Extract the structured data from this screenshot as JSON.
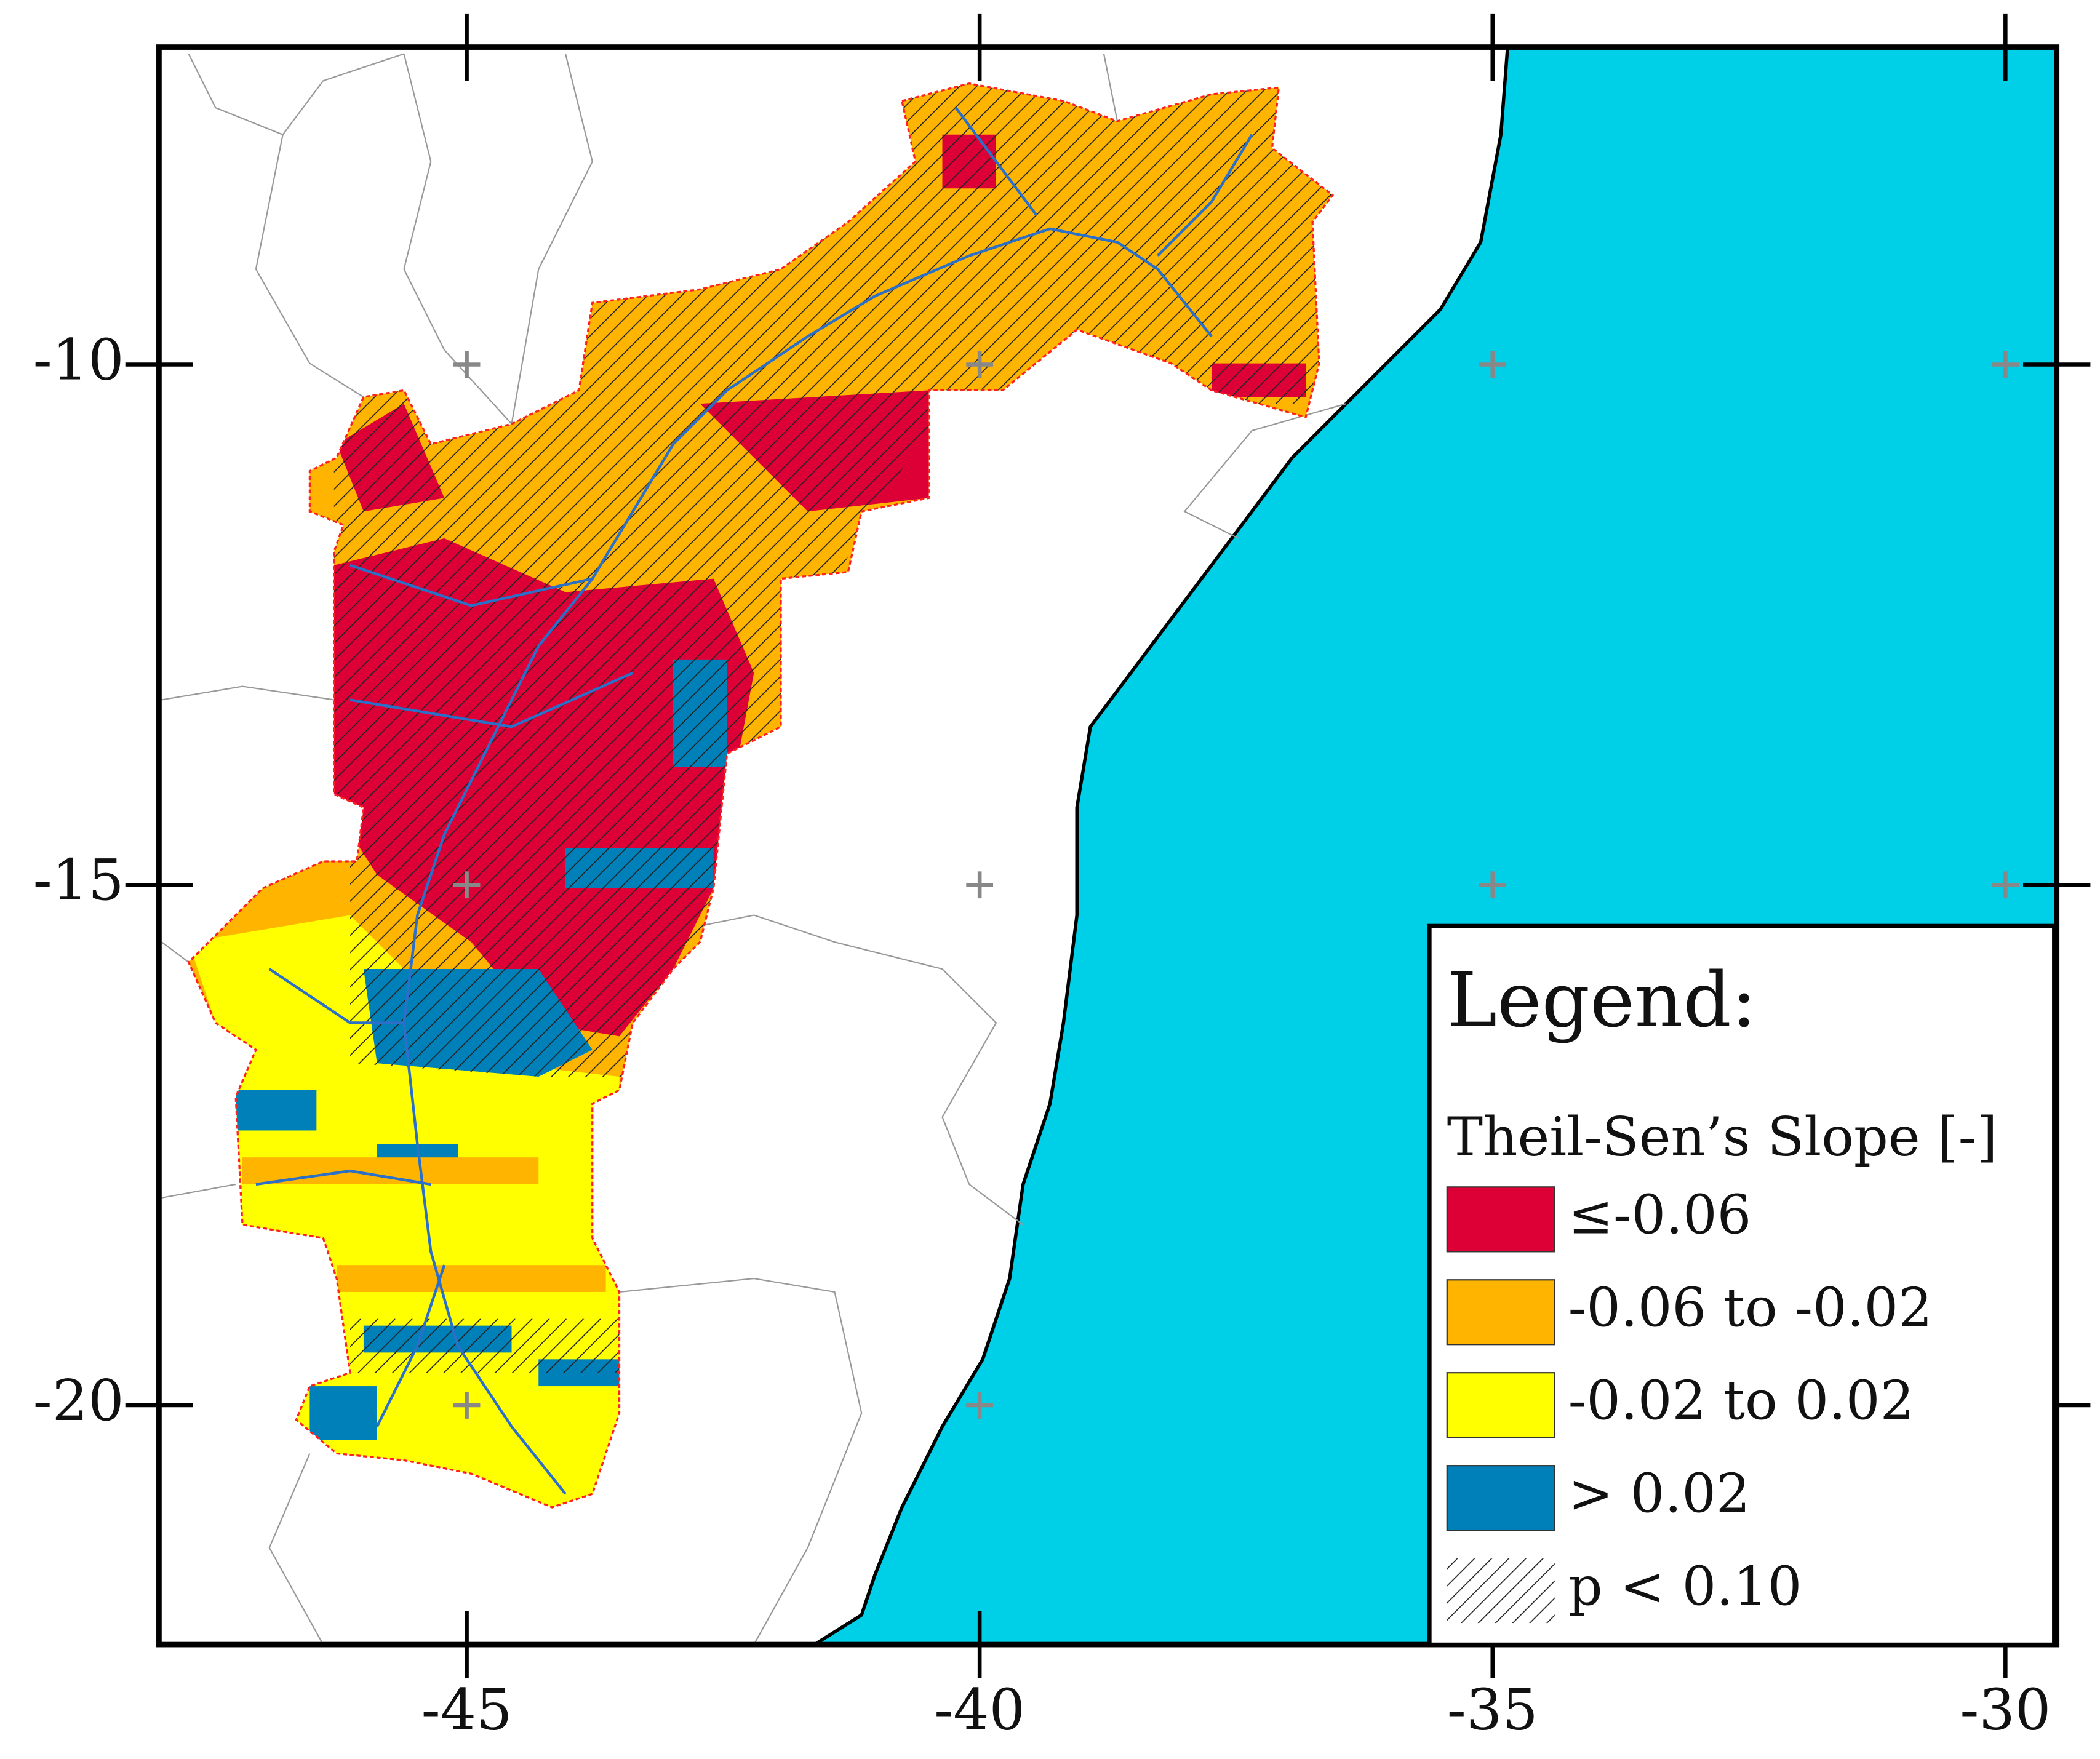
{
  "map": {
    "xlim": [
      -48,
      -29.5
    ],
    "ylim": [
      -22.3,
      -6.95
    ],
    "xticks": [
      -45,
      -40,
      -35,
      -30
    ],
    "yticks": [
      -10,
      -15,
      -20
    ],
    "legend": {
      "title": "Legend:",
      "subtitle": "Theil-Sen’s Slope [-]",
      "items": [
        {
          "label": "≤-0.06",
          "color": "#dc0037"
        },
        {
          "label": "-0.06 to -0.02",
          "color": "#ffb400"
        },
        {
          "label": "-0.02 to 0.02",
          "color": "#ffff00"
        },
        {
          "label": "> 0.02",
          "color": "#0080b8"
        }
      ],
      "hatch_label": "p < 0.10"
    },
    "ocean_color": "#00cfe8"
  }
}
